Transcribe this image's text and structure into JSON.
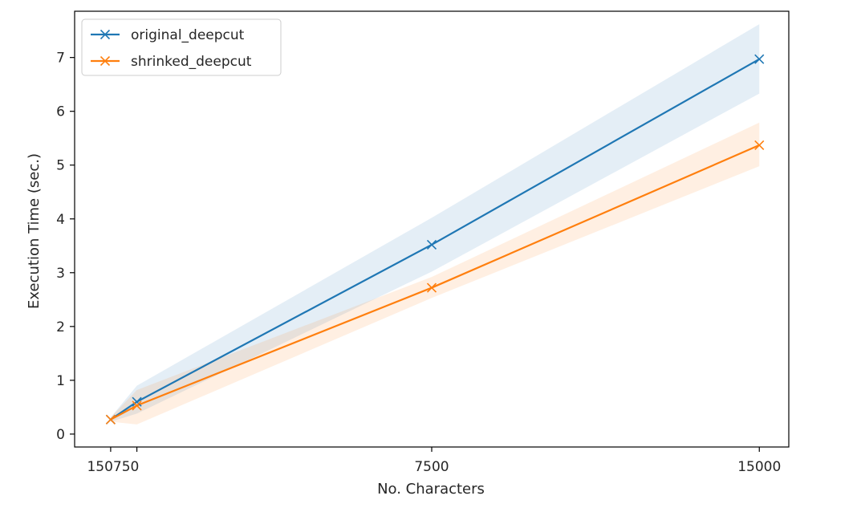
{
  "chart_data": {
    "type": "line",
    "title": "",
    "xlabel": "No. Characters",
    "ylabel": "Execution Time (sec.)",
    "xlim": [
      -675,
      15675
    ],
    "ylim": [
      -0.24,
      7.86
    ],
    "x_ticks": [
      150,
      750,
      7500,
      15000
    ],
    "x_tick_labels": [
      "150",
      "750",
      "7500",
      "15000"
    ],
    "y_ticks": [
      0,
      1,
      2,
      3,
      4,
      5,
      6,
      7
    ],
    "y_tick_labels": [
      "0",
      "1",
      "2",
      "3",
      "4",
      "5",
      "6",
      "7"
    ],
    "grid": false,
    "legend_position": "top-left",
    "series": [
      {
        "name": "original_deepcut",
        "color": "#1f77b4",
        "marker": "x",
        "x": [
          150,
          750,
          7500,
          15000
        ],
        "y": [
          0.27,
          0.6,
          3.52,
          6.97
        ],
        "ci_low": [
          0.23,
          0.38,
          3.02,
          6.33
        ],
        "ci_high": [
          0.31,
          0.9,
          4.02,
          7.62
        ]
      },
      {
        "name": "shrinked_deepcut",
        "color": "#ff7f0e",
        "marker": "x",
        "x": [
          150,
          750,
          7500,
          15000
        ],
        "y": [
          0.27,
          0.53,
          2.72,
          5.37
        ],
        "ci_low": [
          0.23,
          0.18,
          2.53,
          4.98
        ],
        "ci_high": [
          0.31,
          0.82,
          2.92,
          5.79
        ]
      }
    ]
  }
}
